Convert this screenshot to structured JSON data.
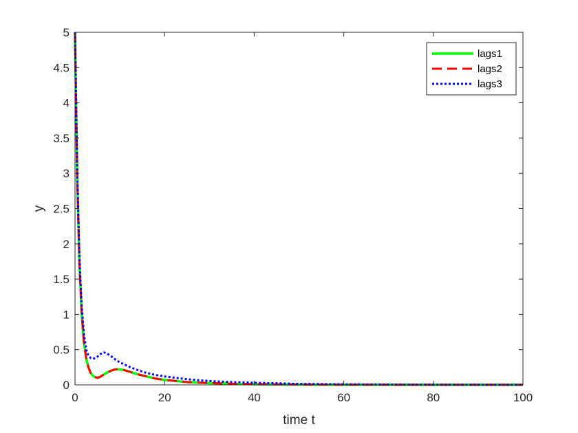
{
  "chart_data": {
    "type": "line",
    "title": "",
    "xlabel": "time t",
    "ylabel": "y",
    "xlim": [
      0,
      100
    ],
    "ylim": [
      0,
      5
    ],
    "xticks": [
      0,
      20,
      40,
      60,
      80,
      100
    ],
    "yticks": [
      0,
      0.5,
      1,
      1.5,
      2,
      2.5,
      3,
      3.5,
      4,
      4.5,
      5
    ],
    "xtick_labels": [
      "0",
      "20",
      "40",
      "60",
      "80",
      "100"
    ],
    "ytick_labels": [
      "0",
      "0.5",
      "1",
      "1.5",
      "2",
      "2.5",
      "3",
      "3.5",
      "4",
      "4.5",
      "5"
    ],
    "grid": false,
    "legend_position": "top-right",
    "series": [
      {
        "name": "lags1",
        "color": "#00ff00",
        "style": "solid",
        "x": [
          0,
          0.5,
          1,
          1.5,
          2,
          2.5,
          3,
          3.5,
          4,
          4.5,
          5,
          5.5,
          6,
          7,
          8,
          9,
          10,
          11,
          12,
          14,
          16,
          18,
          20,
          25,
          30,
          35,
          40,
          50,
          60,
          70,
          80,
          90,
          100
        ],
        "y": [
          5,
          2.9,
          1.7,
          1.0,
          0.6,
          0.38,
          0.25,
          0.17,
          0.13,
          0.11,
          0.1,
          0.11,
          0.13,
          0.17,
          0.2,
          0.22,
          0.22,
          0.21,
          0.19,
          0.15,
          0.12,
          0.09,
          0.07,
          0.04,
          0.025,
          0.015,
          0.01,
          0.005,
          0.003,
          0.002,
          0.001,
          0.001,
          0.001
        ]
      },
      {
        "name": "lags2",
        "color": "#ff0000",
        "style": "dashed",
        "x": [
          0,
          0.5,
          1,
          1.5,
          2,
          2.5,
          3,
          3.5,
          4,
          4.5,
          5,
          5.5,
          6,
          7,
          8,
          9,
          10,
          11,
          12,
          14,
          16,
          18,
          20,
          25,
          30,
          35,
          40,
          50,
          60,
          70,
          80,
          90,
          100
        ],
        "y": [
          5,
          2.9,
          1.7,
          1.0,
          0.6,
          0.38,
          0.25,
          0.17,
          0.13,
          0.11,
          0.1,
          0.11,
          0.13,
          0.17,
          0.2,
          0.22,
          0.22,
          0.21,
          0.19,
          0.15,
          0.12,
          0.09,
          0.07,
          0.04,
          0.025,
          0.015,
          0.01,
          0.005,
          0.003,
          0.002,
          0.001,
          0.001,
          0.001
        ]
      },
      {
        "name": "lags3",
        "color": "#0000ff",
        "style": "dotted",
        "x": [
          0,
          0.5,
          1,
          1.5,
          2,
          2.5,
          3,
          3.5,
          4,
          4.5,
          5,
          5.5,
          6,
          6.5,
          7,
          8,
          9,
          10,
          12,
          14,
          16,
          18,
          20,
          25,
          30,
          35,
          40,
          50,
          60,
          70,
          80,
          90,
          100
        ],
        "y": [
          5,
          3.0,
          1.8,
          1.1,
          0.72,
          0.5,
          0.42,
          0.38,
          0.37,
          0.38,
          0.4,
          0.43,
          0.45,
          0.46,
          0.45,
          0.41,
          0.36,
          0.32,
          0.26,
          0.21,
          0.17,
          0.14,
          0.12,
          0.08,
          0.055,
          0.04,
          0.03,
          0.015,
          0.008,
          0.005,
          0.003,
          0.002,
          0.001
        ]
      }
    ]
  }
}
